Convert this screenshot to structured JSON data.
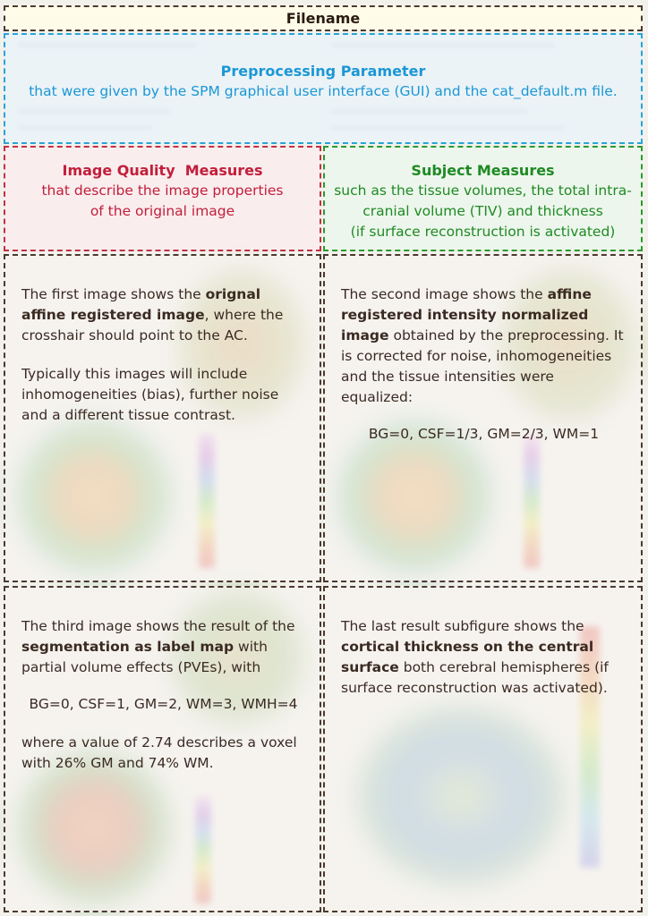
{
  "header": {
    "filename": "Filename"
  },
  "preprocessing": {
    "title": "Preprocessing Parameter",
    "description": "that were given by the SPM graphical user interface (GUI) and the cat_default.m file."
  },
  "image_quality": {
    "title": "Image Quality  Measures",
    "line1": "that describe the image properties",
    "line2": "of the original image"
  },
  "subject_measures": {
    "title": "Subject Measures",
    "line1": "such as the tissue volumes, the total intra-",
    "line2": "cranial volume (TIV) and thickness",
    "line3": "(if surface reconstruction is activated)"
  },
  "panel_first": {
    "intro": "The first image shows the ",
    "bold": "orignal affine registered image",
    "rest": ", where the crosshair should point to the AC.",
    "para2": "Typically this images will include inhomogeneities (bias), further noise and a different tissue contrast."
  },
  "panel_second": {
    "intro": "The second image shows the ",
    "bold": "affine registered intensity normalized image",
    "rest": " obtained by the preprocessing. It is corrected for noise, inhomogeneities and the tissue intensities were equalized:",
    "formula": "BG=0, CSF=1/3, GM=2/3, WM=1"
  },
  "panel_third": {
    "intro": "The third image shows the result of the ",
    "bold": "segmentation as label map",
    "rest": " with partial volume effects (PVEs), with",
    "formula": "BG=0, CSF=1, GM=2, WM=3, WMH=4",
    "para2": "where a value of 2.74 describes a voxel with 26% GM and 74% WM."
  },
  "panel_fourth": {
    "intro": "The last result subfigure shows the ",
    "bold": "cortical thickness on the central surface",
    "rest": " both cerebral hemispheres (if surface reconstruction was activated)."
  },
  "colors": {
    "preprocessing": "#1b97d4",
    "image_quality": "#c21e3a",
    "subject_measures": "#1e8a24",
    "border": "#4a3a30"
  }
}
